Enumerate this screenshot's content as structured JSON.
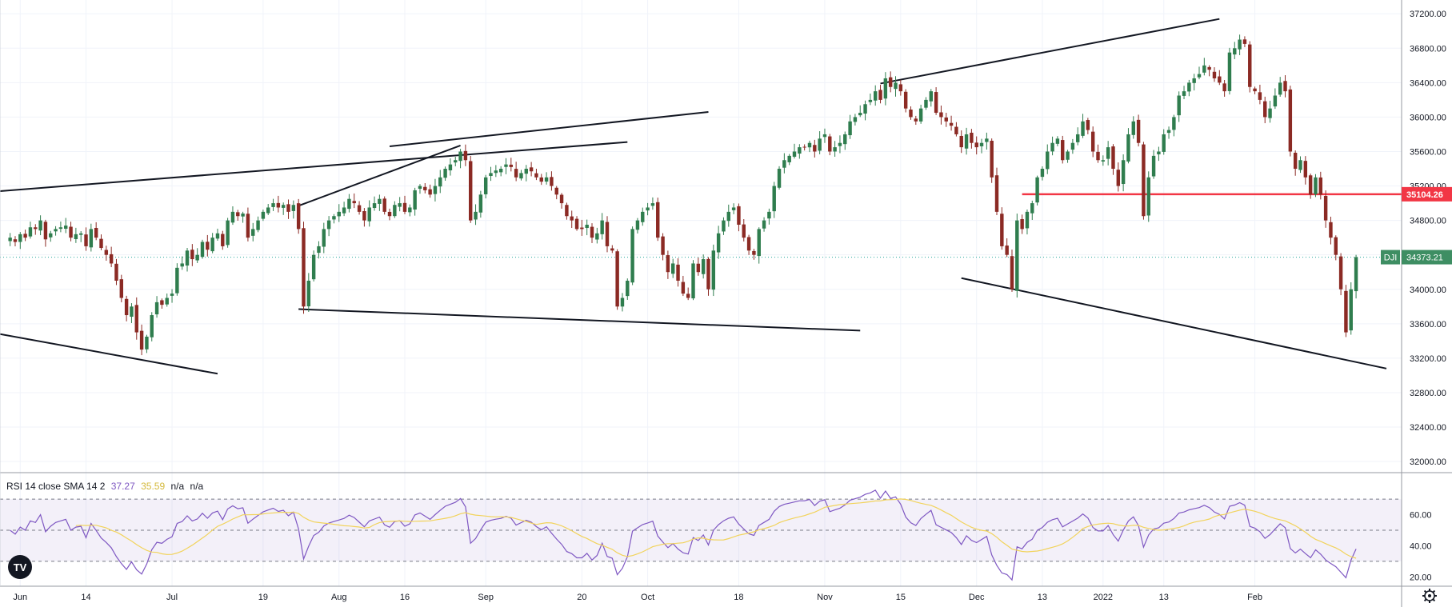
{
  "chart_data": {
    "type": "candlestick",
    "symbol": "DJI",
    "last_price": "34373.21",
    "last_price_value": 34373.21,
    "marked_level": "35104.26",
    "marked_level_value": 35104.26,
    "price_ticks": [
      "37200.00",
      "36800.00",
      "36400.00",
      "36000.00",
      "35600.00",
      "35200.00",
      "34800.00",
      "34400.00",
      "34000.00",
      "33600.00",
      "33200.00",
      "32800.00",
      "32400.00",
      "32000.00"
    ],
    "price_range": [
      31880,
      37360
    ],
    "x_tick_labels": [
      "Jun",
      "14",
      "Jul",
      "19",
      "Aug",
      "16",
      "Sep",
      "20",
      "Oct",
      "18",
      "Nov",
      "15",
      "Dec",
      "13",
      "2022",
      "13",
      "Feb"
    ],
    "x_tick_days": [
      2,
      15,
      32,
      50,
      65,
      78,
      94,
      113,
      126,
      144,
      161,
      176,
      191,
      204,
      216,
      228,
      246
    ],
    "day_range": [
      -2,
      275
    ],
    "closes": [
      34600,
      34550,
      34640,
      34600,
      34720,
      34700,
      34800,
      34580,
      34650,
      34700,
      34720,
      34740,
      34600,
      34640,
      34650,
      34500,
      34700,
      34600,
      34480,
      34400,
      34300,
      34100,
      33900,
      33700,
      33800,
      33500,
      33300,
      33450,
      33700,
      33850,
      33820,
      33900,
      33950,
      34250,
      34300,
      34450,
      34350,
      34400,
      34550,
      34460,
      34600,
      34650,
      34500,
      34800,
      34900,
      34850,
      34880,
      34600,
      34700,
      34800,
      34900,
      34950,
      35000,
      34950,
      34980,
      34900,
      34980,
      34700,
      33800,
      34100,
      34400,
      34500,
      34700,
      34800,
      34850,
      34900,
      34950,
      35050,
      35000,
      34900,
      34800,
      34950,
      35000,
      35050,
      34900,
      34850,
      34980,
      35000,
      34900,
      34950,
      35150,
      35200,
      35150,
      35100,
      35200,
      35300,
      35400,
      35450,
      35500,
      35600,
      35500,
      34800,
      34900,
      35100,
      35300,
      35350,
      35380,
      35400,
      35450,
      35420,
      35300,
      35350,
      35400,
      35370,
      35300,
      35250,
      35300,
      35200,
      35100,
      35000,
      34850,
      34800,
      34700,
      34700,
      34750,
      34600,
      34650,
      34800,
      34500,
      34450,
      33800,
      33900,
      34100,
      34700,
      34800,
      34900,
      34950,
      35000,
      34600,
      34400,
      34200,
      34300,
      34100,
      33950,
      33900,
      34300,
      34200,
      34350,
      34000,
      34450,
      34650,
      34800,
      34900,
      34950,
      34750,
      34600,
      34450,
      34400,
      34700,
      34800,
      34900,
      35200,
      35400,
      35500,
      35550,
      35600,
      35650,
      35650,
      35700,
      35600,
      35750,
      35800,
      35600,
      35650,
      35700,
      35800,
      35950,
      36000,
      36050,
      36150,
      36200,
      36300,
      36200,
      36450,
      36350,
      36400,
      36300,
      36100,
      36000,
      35950,
      36100,
      36200,
      36300,
      36050,
      36000,
      35950,
      35900,
      35800,
      35650,
      35800,
      35700,
      35650,
      35700,
      35750,
      35300,
      34900,
      34500,
      34400,
      34000,
      34800,
      34700,
      34900,
      35000,
      35300,
      35400,
      35600,
      35700,
      35750,
      35500,
      35600,
      35700,
      35800,
      35950,
      35850,
      35600,
      35500,
      35500,
      35650,
      35400,
      35200,
      35500,
      35800,
      35950,
      35700,
      34850,
      35300,
      35550,
      35600,
      35800,
      35850,
      36000,
      36250,
      36300,
      36400,
      36450,
      36500,
      36600,
      36550,
      36450,
      36400,
      36300,
      36750,
      36800,
      36900,
      36850,
      36350,
      36300,
      36200,
      36000,
      36100,
      36250,
      36400,
      36300,
      35600,
      35400,
      35500,
      35300,
      35100,
      35300,
      35100,
      34800,
      34600,
      34400,
      34000,
      33500,
      34000,
      34373.21
    ],
    "trend_lines": [
      {
        "from": [
          -2,
          35140
        ],
        "to": [
          122,
          35710
        ]
      },
      {
        "from": [
          -2,
          33480
        ],
        "to": [
          41,
          33020
        ]
      },
      {
        "from": [
          57,
          34970
        ],
        "to": [
          89,
          35670
        ]
      },
      {
        "from": [
          75,
          35660
        ],
        "to": [
          138,
          36060
        ]
      },
      {
        "from": [
          57,
          33770
        ],
        "to": [
          168,
          33520
        ]
      },
      {
        "from": [
          172,
          36390
        ],
        "to": [
          239,
          37140
        ]
      },
      {
        "from": [
          188,
          34130
        ],
        "to": [
          272,
          33080
        ]
      }
    ],
    "rsi": {
      "label": "RSI 14 close SMA 14 2",
      "rsi_value": "37.27",
      "sma_value": "35.59",
      "na1": "n/a",
      "na2": "n/a",
      "range": [
        14,
        86
      ],
      "ticks": [
        "60.00",
        "40.00",
        "20.00"
      ],
      "overbought": 70,
      "oversold": 30,
      "rsi_color": "#7e57c2",
      "sma_color": "#f2d35b"
    }
  }
}
